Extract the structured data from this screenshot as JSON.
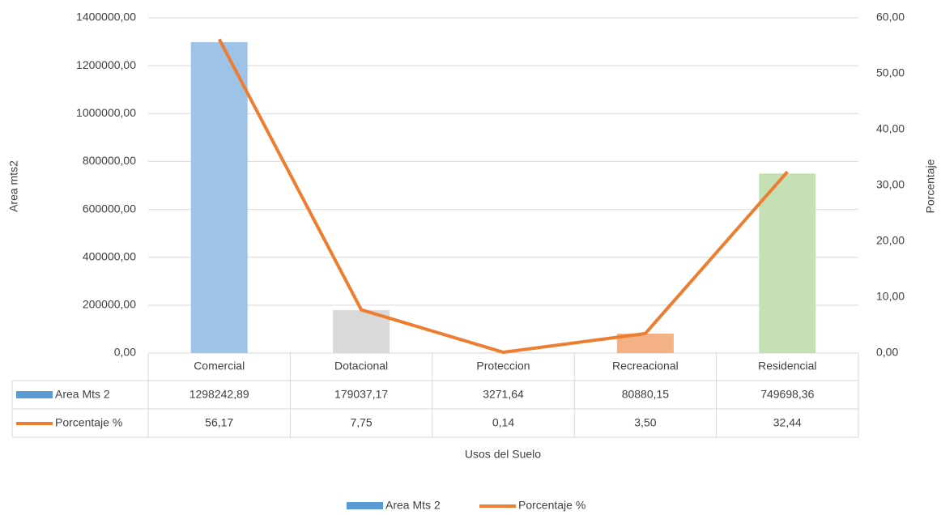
{
  "chart_data": {
    "type": "bar-line",
    "x_label": "Usos del Suelo",
    "y_label": "Area mts2",
    "y2_label": "Porcentaje",
    "categories": [
      "Comercial",
      "Dotacional",
      "Proteccion",
      "Recreacional",
      "Residencial"
    ],
    "series": [
      {
        "name": "Area Mts 2",
        "type": "bar",
        "color": "#5b9bd5",
        "colors": [
          "#9dc3e6",
          "#d9d9d9",
          "#ffe699",
          "#f4b183",
          "#c5e0b4"
        ],
        "values": [
          1298242.89,
          179037.17,
          3271.64,
          80880.15,
          749698.36
        ],
        "value_labels": [
          "1298242,89",
          "179037,17",
          "3271,64",
          "80880,15",
          "749698,36"
        ]
      },
      {
        "name": "Porcentaje %",
        "type": "line",
        "axis": "y2",
        "color": "#ed7d31",
        "values": [
          56.17,
          7.75,
          0.14,
          3.5,
          32.44
        ],
        "value_labels": [
          "56,17",
          "7,75",
          "0,14",
          "3,50",
          "32,44"
        ]
      }
    ],
    "ylim": [
      0,
      1400000
    ],
    "yticks": [
      {
        "value": 0,
        "label": "0,00"
      },
      {
        "value": 200000,
        "label": "200000,00"
      },
      {
        "value": 400000,
        "label": "400000,00"
      },
      {
        "value": 600000,
        "label": "600000,00"
      },
      {
        "value": 800000,
        "label": "800000,00"
      },
      {
        "value": 1000000,
        "label": "1000000,00"
      },
      {
        "value": 1200000,
        "label": "1200000,00"
      },
      {
        "value": 1400000,
        "label": "1400000,00"
      }
    ],
    "y2lim": [
      0,
      60
    ],
    "y2ticks": [
      {
        "value": 0,
        "label": "0,00"
      },
      {
        "value": 10,
        "label": "10,00"
      },
      {
        "value": 20,
        "label": "20,00"
      },
      {
        "value": 30,
        "label": "30,00"
      },
      {
        "value": 40,
        "label": "40,00"
      },
      {
        "value": 50,
        "label": "50,00"
      },
      {
        "value": 60,
        "label": "60,00"
      }
    ],
    "grid": true,
    "legend": "bottom"
  }
}
